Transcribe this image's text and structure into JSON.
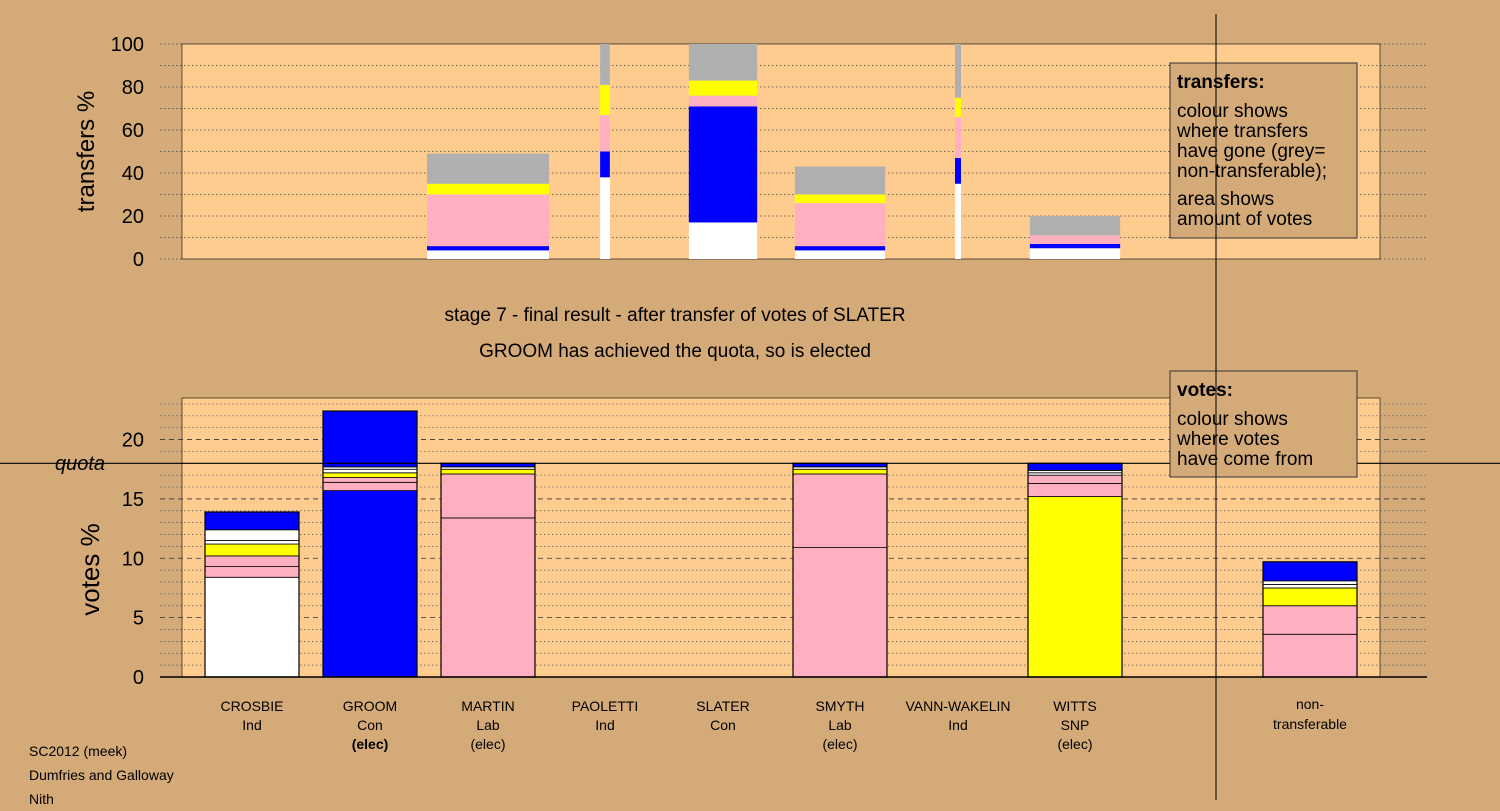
{
  "stage_title": "stage 7 - final result - after transfer of votes of SLATER",
  "status_line": "GROOM has achieved the quota, so is elected",
  "quota_label": "quota",
  "footer": {
    "election": "SC2012 (meek)",
    "council": "Dumfries and Galloway",
    "ward": "Nith"
  },
  "colors": {
    "ind": "#ffffff",
    "con": "#0000ff",
    "lab": "#ffb0c0",
    "snp": "#ffff00",
    "nontransferable": "#b0b0b0",
    "plot_bg": "#ffcc90",
    "page_bg": "#d4aa78"
  },
  "chart_data": [
    {
      "id": "transfers",
      "type": "bar",
      "ylabel": "transfers %",
      "ylim": [
        0,
        100
      ],
      "yticks": [
        0,
        20,
        40,
        60,
        80,
        100
      ],
      "legend": {
        "title": "transfers:",
        "lines": [
          "colour shows",
          "where transfers",
          "have gone (grey=",
          "non-transferable);"
        ],
        "lines2": [
          "area shows",
          "amount of votes"
        ]
      },
      "bars": [
        {
          "candidate": "MARTIN",
          "width_share": 1.0,
          "segments": [
            [
              "ind",
              4
            ],
            [
              "con",
              2
            ],
            [
              "lab",
              24
            ],
            [
              "snp",
              5
            ],
            [
              "nontransferable",
              14
            ]
          ]
        },
        {
          "candidate": "PAOLETTI",
          "width_share": 0.08,
          "segments": [
            [
              "ind",
              38
            ],
            [
              "con",
              12
            ],
            [
              "lab",
              17
            ],
            [
              "snp",
              14
            ],
            [
              "nontransferable",
              19
            ]
          ]
        },
        {
          "candidate": "SLATER",
          "width_share": 0.56,
          "segments": [
            [
              "ind",
              17
            ],
            [
              "con",
              54
            ],
            [
              "lab",
              5
            ],
            [
              "snp",
              7
            ],
            [
              "nontransferable",
              17
            ]
          ]
        },
        {
          "candidate": "SMYTH",
          "width_share": 0.74,
          "segments": [
            [
              "ind",
              4
            ],
            [
              "con",
              2
            ],
            [
              "lab",
              20
            ],
            [
              "snp",
              4
            ],
            [
              "nontransferable",
              13
            ]
          ]
        },
        {
          "candidate": "VANN-WAKELIN",
          "width_share": 0.04,
          "segments": [
            [
              "ind",
              35
            ],
            [
              "con",
              12
            ],
            [
              "lab",
              19
            ],
            [
              "snp",
              9
            ],
            [
              "nontransferable",
              25
            ]
          ]
        },
        {
          "candidate": "WITTS",
          "width_share": 0.74,
          "segments": [
            [
              "ind",
              5
            ],
            [
              "con",
              2
            ],
            [
              "lab",
              4
            ],
            [
              "nontransferable",
              9
            ]
          ]
        }
      ]
    },
    {
      "id": "votes",
      "type": "bar",
      "ylabel": "votes %",
      "ylim": [
        0,
        23.5
      ],
      "yticks": [
        0,
        5,
        10,
        15,
        20
      ],
      "quota": 18,
      "legend": {
        "title": "votes:",
        "lines": [
          "colour shows",
          "where votes",
          "have come from"
        ]
      },
      "candidates": [
        {
          "name": "CROSBIE",
          "party": "Ind",
          "status": ""
        },
        {
          "name": "GROOM",
          "party": "Con",
          "status": "(elec)"
        },
        {
          "name": "MARTIN",
          "party": "Lab",
          "status": "(elec)"
        },
        {
          "name": "PAOLETTI",
          "party": "Ind",
          "status": ""
        },
        {
          "name": "SLATER",
          "party": "Con",
          "status": ""
        },
        {
          "name": "SMYTH",
          "party": "Lab",
          "status": "(elec)"
        },
        {
          "name": "VANN-WAKELIN",
          "party": "Ind",
          "status": ""
        },
        {
          "name": "WITTS",
          "party": "SNP",
          "status": "(elec)"
        }
      ],
      "nontransferable_label": [
        "non-",
        "transferable"
      ],
      "bars": [
        {
          "candidate": "CROSBIE",
          "segments": [
            [
              "ind",
              8.4
            ],
            [
              "lab",
              0.9
            ],
            [
              "lab",
              0.9
            ],
            [
              "snp",
              1.0
            ],
            [
              "ind",
              0.3
            ],
            [
              "ind",
              0.9
            ],
            [
              "con",
              1.5
            ]
          ]
        },
        {
          "candidate": "GROOM",
          "segments": [
            [
              "con",
              15.7
            ],
            [
              "lab",
              0.7
            ],
            [
              "lab",
              0.4
            ],
            [
              "snp",
              0.4
            ],
            [
              "ind",
              0.3
            ],
            [
              "ind",
              0.2
            ],
            [
              "con",
              4.7
            ]
          ]
        },
        {
          "candidate": "MARTIN",
          "segments": [
            [
              "lab",
              13.4
            ],
            [
              "lab",
              3.7
            ],
            [
              "snp",
              0.4
            ],
            [
              "ind",
              0.2
            ],
            [
              "con",
              0.3
            ]
          ]
        },
        {
          "candidate": "PAOLETTI",
          "segments": []
        },
        {
          "candidate": "SLATER",
          "segments": []
        },
        {
          "candidate": "SMYTH",
          "segments": [
            [
              "lab",
              10.9
            ],
            [
              "lab",
              6.2
            ],
            [
              "snp",
              0.4
            ],
            [
              "ind",
              0.2
            ],
            [
              "con",
              0.3
            ]
          ]
        },
        {
          "candidate": "VANN-WAKELIN",
          "segments": []
        },
        {
          "candidate": "WITTS",
          "segments": [
            [
              "snp",
              15.2
            ],
            [
              "lab",
              1.1
            ],
            [
              "lab",
              0.7
            ],
            [
              "ind",
              0.2
            ],
            [
              "ind",
              0.2
            ],
            [
              "con",
              0.6
            ]
          ]
        },
        {
          "candidate": "non-transferable",
          "segments": [
            [
              "lab",
              3.6
            ],
            [
              "lab",
              2.4
            ],
            [
              "snp",
              1.5
            ],
            [
              "ind",
              0.3
            ],
            [
              "ind",
              0.3
            ],
            [
              "con",
              1.6
            ]
          ]
        }
      ]
    }
  ]
}
